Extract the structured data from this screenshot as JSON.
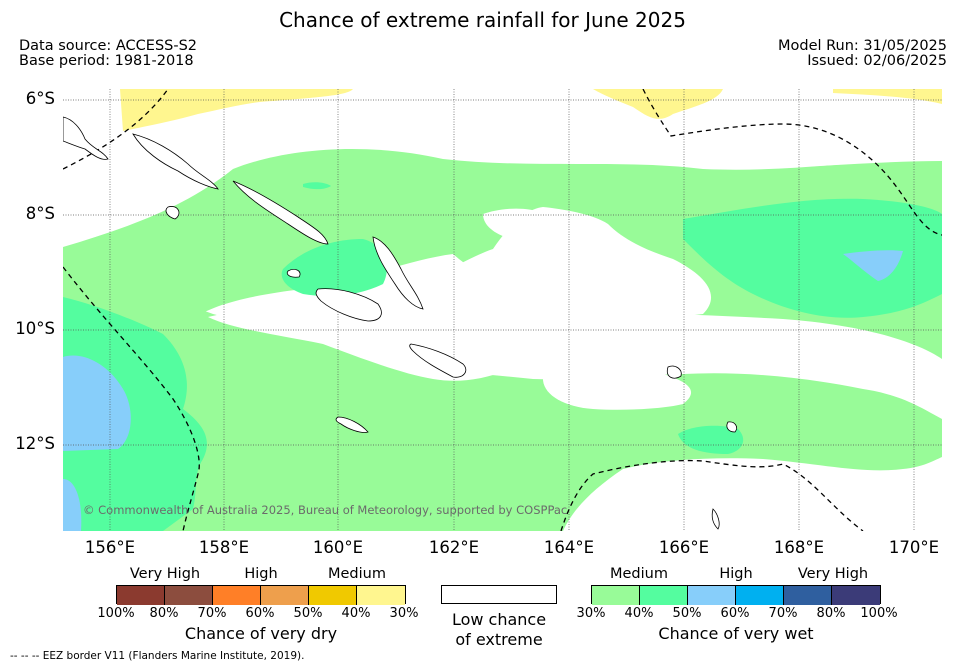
{
  "title": "Chance of extreme rainfall for June 2025",
  "data_source": "Data source: ACCESS-S2",
  "base_period": "Base period: 1981-2018",
  "model_run": "Model Run: 31/05/2025",
  "issued": "Issued: 02/06/2025",
  "map": {
    "lat_labels": [
      "6°S",
      "8°S",
      "10°S",
      "12°S"
    ],
    "lon_labels": [
      "156°E",
      "158°E",
      "160°E",
      "162°E",
      "164°E",
      "166°E",
      "168°E",
      "170°E"
    ],
    "copyright": "© Commonwealth of Australia 2025, Bureau of Meteorology, supported by COSPPac"
  },
  "legend_dry": {
    "headings": [
      "Very High",
      "High",
      "Medium"
    ],
    "ticks": [
      "100%",
      "80%",
      "70%",
      "60%",
      "50%",
      "40%",
      "30%"
    ],
    "colors": [
      "#8b3a2f",
      "#8c4d3e",
      "#ff7f27",
      "#ee9f4c",
      "#f0c900",
      "#fff68f"
    ],
    "caption": "Chance of very dry"
  },
  "legend_low": {
    "caption_line1": "Low chance",
    "caption_line2": "of extreme",
    "color": "#ffffff"
  },
  "legend_wet": {
    "headings": [
      "Medium",
      "High",
      "Very High"
    ],
    "ticks": [
      "30%",
      "40%",
      "50%",
      "60%",
      "70%",
      "80%",
      "100%"
    ],
    "colors": [
      "#98fb98",
      "#54fd9f",
      "#87cefa",
      "#00b0f0",
      "#2f5f9f",
      "#3b3b78"
    ],
    "caption": "Chance of very wet"
  },
  "footnote": "-- -- -- EEZ border V11 (Flanders Marine Institute, 2019)."
}
